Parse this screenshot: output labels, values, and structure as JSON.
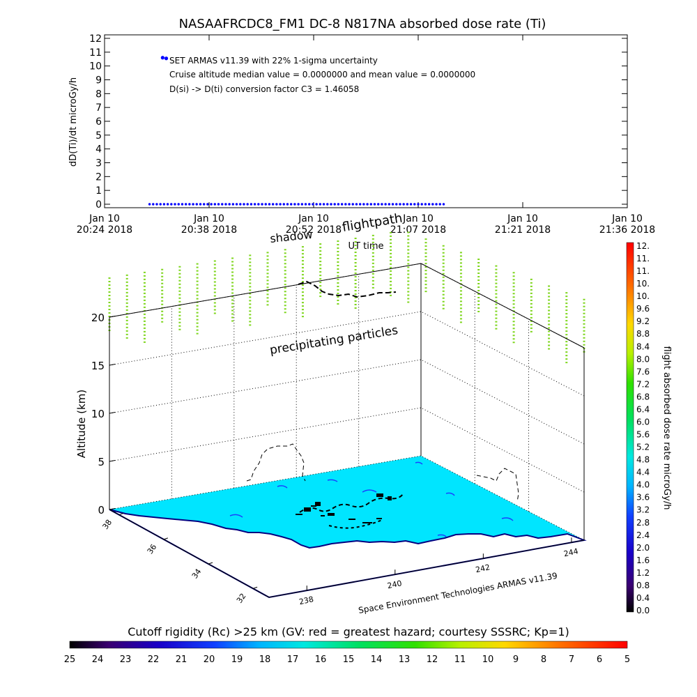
{
  "chart_data": [
    {
      "type": "scatter",
      "title": "NASAAFRCDC8_FM1 DC-8   N817NA absorbed dose rate (Ti)",
      "ylabel": "dD(Ti)/dt microGy/h",
      "xlabel": "UT time",
      "ylim": [
        0,
        12
      ],
      "yticks": [
        "0",
        "1",
        "2",
        "3",
        "4",
        "5",
        "6",
        "7",
        "8",
        "9",
        "10",
        "11",
        "12"
      ],
      "xticks": [
        {
          "line1": "Jan 10",
          "line2": "20:24 2018"
        },
        {
          "line1": "Jan 10",
          "line2": "20:38 2018"
        },
        {
          "line1": "Jan 10",
          "line2": "20:52 2018"
        },
        {
          "line1": "Jan 10",
          "line2": "21:07 2018"
        },
        {
          "line1": "Jan 10",
          "line2": "21:21 2018"
        },
        {
          "line1": "Jan 10",
          "line2": "21:36 2018"
        }
      ],
      "annotations": [
        "SET ARMAS v11.39 with 22% 1-sigma uncertainty",
        "Cruise altitude median value = 0.0000000 and mean value = 0.0000000",
        "D(si) -> D(ti) conversion factor C3 = 1.46058"
      ],
      "series": [
        {
          "color": "#0000ff",
          "x_minutes": [
            8.0,
            8.5
          ],
          "y": [
            10.6,
            10.55
          ]
        },
        {
          "color": "#0000ff",
          "x_minutes_range": [
            6.2,
            47.0
          ],
          "y_const": 0
        }
      ]
    },
    {
      "type": "scatter",
      "zlabel": "Altitude (km)",
      "ztick_values": [
        0,
        5,
        10,
        15,
        20
      ],
      "zticks": [
        "0",
        "5",
        "10",
        "15",
        "20"
      ],
      "lat_ticks": [
        "38",
        "36",
        "34",
        "32"
      ],
      "lon_ticks": [
        "238",
        "240",
        "242",
        "244"
      ],
      "annotations": [
        "shadow",
        "flightpath",
        "precipitating particles",
        "Space Environment Technologies ARMAS v11.39"
      ],
      "colorbar_right": {
        "label": "flight absorbed dose rate microGy/h",
        "ticks": [
          "0.0",
          "0.4",
          "0.8",
          "1.2",
          "1.6",
          "2.0",
          "2.4",
          "2.8",
          "3.2",
          "3.6",
          "4.0",
          "4.4",
          "4.8",
          "5.2",
          "5.6",
          "6.0",
          "6.4",
          "6.8",
          "7.2",
          "7.6",
          "8.0",
          "8.4",
          "8.8",
          "9.2",
          "9.6",
          "10.",
          "10.",
          "11.",
          "11.",
          "12."
        ]
      },
      "colorbar_bottom": {
        "label": "Cutoff rigidity (Rc) >25 km (GV: red = greatest hazard; courtesy SSSRC; Kp=1)",
        "ticks": [
          "25",
          "24",
          "23",
          "22",
          "21",
          "20",
          "19",
          "18",
          "17",
          "16",
          "15",
          "14",
          "13",
          "12",
          "11",
          "10",
          "9",
          "8",
          "7",
          "6",
          "5"
        ]
      },
      "colors": {
        "sea": "#00e5ff",
        "land": "#ffffff",
        "coast": "#000080",
        "particles": "#7fd61e"
      }
    }
  ]
}
